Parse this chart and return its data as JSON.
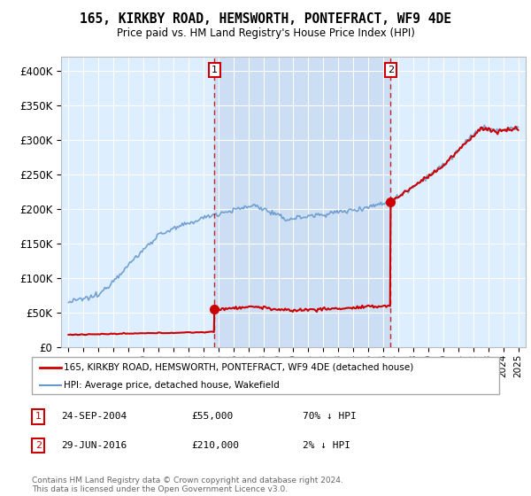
{
  "title": "165, KIRKBY ROAD, HEMSWORTH, PONTEFRACT, WF9 4DE",
  "subtitle": "Price paid vs. HM Land Registry's House Price Index (HPI)",
  "ylim": [
    0,
    420000
  ],
  "yticks": [
    0,
    50000,
    100000,
    150000,
    200000,
    250000,
    300000,
    350000,
    400000
  ],
  "ytick_labels": [
    "£0",
    "£50K",
    "£100K",
    "£150K",
    "£200K",
    "£250K",
    "£300K",
    "£350K",
    "£400K"
  ],
  "background_color": "#ffffff",
  "plot_bg_color": "#ddeeff",
  "shade_color": "#c5d8f0",
  "grid_color": "#ffffff",
  "sale1_year": 2004.73,
  "sale1_price": 55000,
  "sale2_year": 2016.49,
  "sale2_price": 210000,
  "legend_entries": [
    "165, KIRKBY ROAD, HEMSWORTH, PONTEFRACT, WF9 4DE (detached house)",
    "HPI: Average price, detached house, Wakefield"
  ],
  "table_rows": [
    {
      "num": "1",
      "date": "24-SEP-2004",
      "price": "£55,000",
      "hpi": "70% ↓ HPI"
    },
    {
      "num": "2",
      "date": "29-JUN-2016",
      "price": "£210,000",
      "hpi": "2% ↓ HPI"
    }
  ],
  "footer": "Contains HM Land Registry data © Crown copyright and database right 2024.\nThis data is licensed under the Open Government Licence v3.0.",
  "red_color": "#cc0000",
  "blue_color": "#6699cc",
  "vline_color": "#cc0000",
  "xmin": 1994.5,
  "xmax": 2025.5
}
